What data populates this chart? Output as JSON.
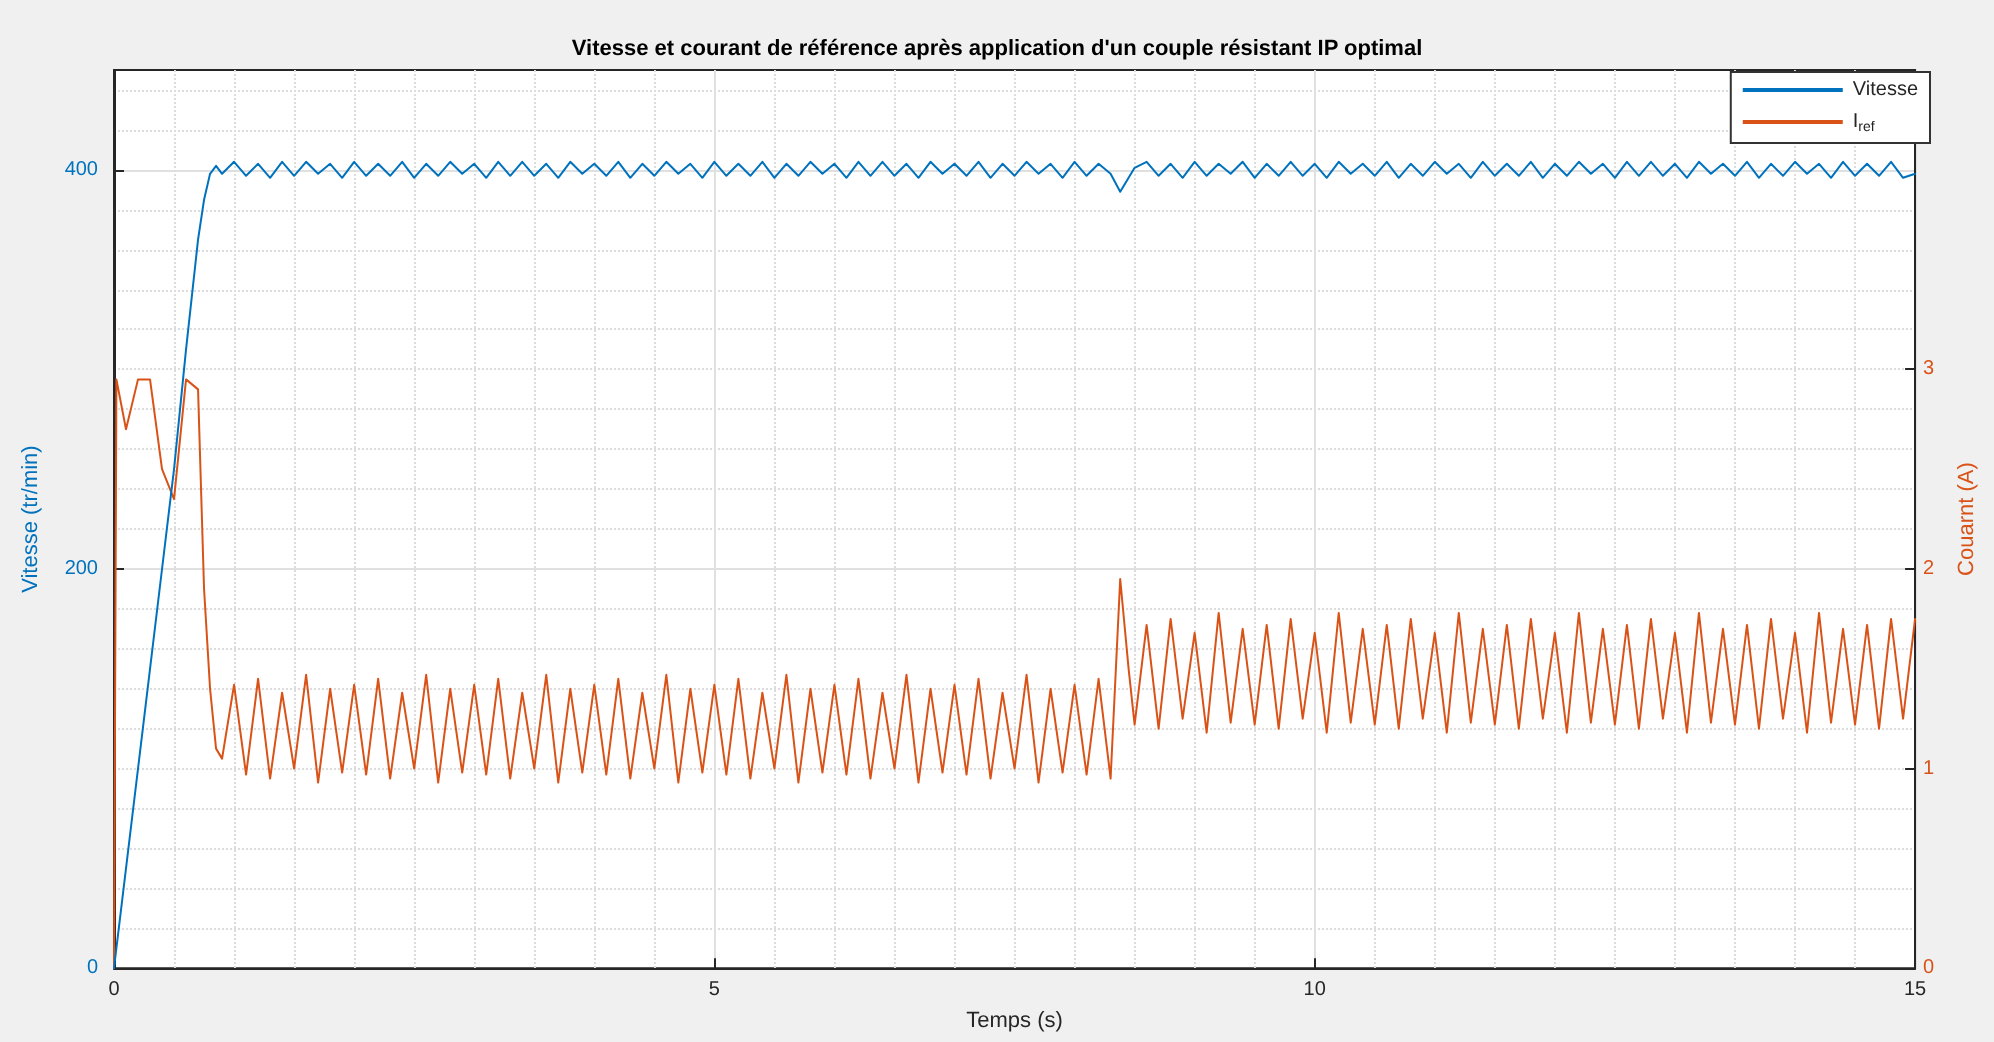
{
  "chart_data": {
    "type": "line",
    "title": "Vitesse et courant de référence après application d'un couple résistant IP optimal",
    "xlabel": "Temps (s)",
    "ylabel": "Vitesse (tr/min)",
    "y2label": "Couarnt (A)",
    "xlim": [
      0,
      15
    ],
    "xticks": [
      0,
      5,
      10,
      15
    ],
    "ylim": [
      0,
      450
    ],
    "yticks": [
      0,
      200,
      400
    ],
    "y2lim": [
      0,
      4.5
    ],
    "y2ticks": [
      0,
      1,
      2,
      3
    ],
    "grid": true,
    "legend": "top right",
    "x": [
      0,
      0.02,
      0.1,
      0.2,
      0.3,
      0.4,
      0.5,
      0.6,
      0.7,
      0.75,
      0.8,
      0.85,
      0.9,
      1.0,
      1.1,
      1.2,
      1.3,
      1.4,
      1.5,
      1.6,
      1.7,
      1.8,
      1.9,
      2.0,
      2.1,
      2.2,
      2.3,
      2.4,
      2.5,
      2.6,
      2.7,
      2.8,
      2.9,
      3.0,
      3.1,
      3.2,
      3.3,
      3.4,
      3.5,
      3.6,
      3.7,
      3.8,
      3.9,
      4.0,
      4.1,
      4.2,
      4.3,
      4.4,
      4.5,
      4.6,
      4.7,
      4.8,
      4.9,
      5.0,
      5.1,
      5.2,
      5.3,
      5.4,
      5.5,
      5.6,
      5.7,
      5.8,
      5.9,
      6.0,
      6.1,
      6.2,
      6.3,
      6.4,
      6.5,
      6.6,
      6.7,
      6.8,
      6.9,
      7.0,
      7.1,
      7.2,
      7.3,
      7.4,
      7.5,
      7.6,
      7.7,
      7.8,
      7.9,
      8.0,
      8.1,
      8.2,
      8.3,
      8.38,
      8.45,
      8.5,
      8.6,
      8.7,
      8.8,
      8.9,
      9.0,
      9.1,
      9.2,
      9.3,
      9.4,
      9.5,
      9.6,
      9.7,
      9.8,
      9.9,
      10.0,
      10.1,
      10.2,
      10.3,
      10.4,
      10.5,
      10.6,
      10.7,
      10.8,
      10.9,
      11.0,
      11.1,
      11.2,
      11.3,
      11.4,
      11.5,
      11.6,
      11.7,
      11.8,
      11.9,
      12.0,
      12.1,
      12.2,
      12.3,
      12.4,
      12.5,
      12.6,
      12.7,
      12.8,
      12.9,
      13.0,
      13.1,
      13.2,
      13.3,
      13.4,
      13.5,
      13.6,
      13.7,
      13.8,
      13.9,
      14.0,
      14.1,
      14.2,
      14.3,
      14.4,
      14.5,
      14.6,
      14.7,
      14.8,
      14.9,
      15.0
    ],
    "series": [
      {
        "name": "Vitesse",
        "color": "#0072bd",
        "values": [
          0,
          10,
          50,
          100,
          150,
          200,
          250,
          310,
          365,
          385,
          398,
          402,
          398,
          404,
          397,
          403,
          396,
          404,
          397,
          404,
          398,
          403,
          396,
          404,
          397,
          403,
          397,
          404,
          396,
          403,
          397,
          404,
          398,
          403,
          396,
          404,
          397,
          404,
          397,
          403,
          396,
          404,
          398,
          403,
          397,
          404,
          396,
          403,
          397,
          404,
          398,
          403,
          396,
          404,
          397,
          403,
          397,
          404,
          396,
          403,
          397,
          404,
          398,
          403,
          396,
          404,
          397,
          404,
          397,
          403,
          396,
          404,
          398,
          403,
          397,
          404,
          396,
          403,
          397,
          404,
          398,
          403,
          396,
          404,
          397,
          403,
          398,
          389,
          396,
          401,
          404,
          397,
          403,
          396,
          404,
          397,
          403,
          398,
          404,
          396,
          403,
          397,
          404,
          397,
          403,
          396,
          404,
          398,
          403,
          397,
          404,
          396,
          403,
          397,
          404,
          398,
          403,
          396,
          404,
          397,
          403,
          397,
          404,
          396,
          403,
          397,
          404,
          398,
          403,
          396,
          404,
          397,
          404,
          397,
          403,
          396,
          404,
          398,
          403,
          397,
          404,
          396,
          403,
          397,
          404,
          398,
          403,
          396,
          404,
          397,
          403,
          397,
          404,
          396,
          398
        ]
      },
      {
        "name": "I$_{ref}$",
        "color": "#d95319",
        "axis": "y2",
        "values": [
          0,
          2.95,
          2.7,
          2.95,
          2.95,
          2.5,
          2.35,
          2.95,
          2.9,
          1.9,
          1.4,
          1.1,
          1.05,
          1.42,
          0.97,
          1.45,
          0.95,
          1.38,
          1.0,
          1.47,
          0.93,
          1.4,
          0.98,
          1.42,
          0.97,
          1.45,
          0.95,
          1.38,
          1.0,
          1.47,
          0.93,
          1.4,
          0.98,
          1.42,
          0.97,
          1.45,
          0.95,
          1.38,
          1.0,
          1.47,
          0.93,
          1.4,
          0.98,
          1.42,
          0.97,
          1.45,
          0.95,
          1.38,
          1.0,
          1.47,
          0.93,
          1.4,
          0.98,
          1.42,
          0.97,
          1.45,
          0.95,
          1.38,
          1.0,
          1.47,
          0.93,
          1.4,
          0.98,
          1.42,
          0.97,
          1.45,
          0.95,
          1.38,
          1.0,
          1.47,
          0.93,
          1.4,
          0.98,
          1.42,
          0.97,
          1.45,
          0.95,
          1.38,
          1.0,
          1.47,
          0.93,
          1.4,
          0.98,
          1.42,
          0.97,
          1.45,
          0.95,
          1.95,
          1.5,
          1.22,
          1.72,
          1.2,
          1.75,
          1.25,
          1.68,
          1.18,
          1.78,
          1.23,
          1.7,
          1.22,
          1.72,
          1.2,
          1.75,
          1.25,
          1.68,
          1.18,
          1.78,
          1.23,
          1.7,
          1.22,
          1.72,
          1.2,
          1.75,
          1.25,
          1.68,
          1.18,
          1.78,
          1.23,
          1.7,
          1.22,
          1.72,
          1.2,
          1.75,
          1.25,
          1.68,
          1.18,
          1.78,
          1.23,
          1.7,
          1.22,
          1.72,
          1.2,
          1.75,
          1.25,
          1.68,
          1.18,
          1.78,
          1.23,
          1.7,
          1.22,
          1.72,
          1.2,
          1.75,
          1.25,
          1.68,
          1.18,
          1.78,
          1.23,
          1.7,
          1.22,
          1.72,
          1.2,
          1.75,
          1.25,
          1.75
        ]
      }
    ]
  }
}
